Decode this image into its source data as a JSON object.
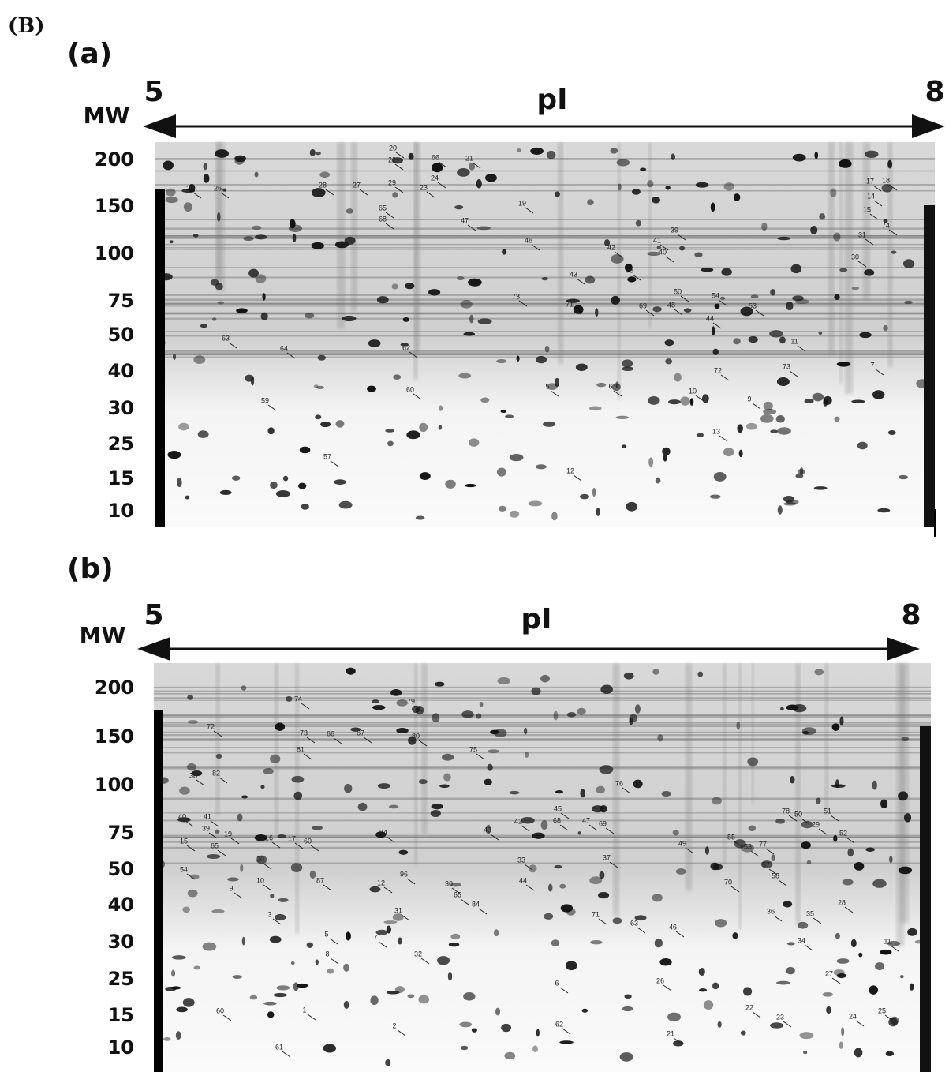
{
  "figure_label": "(B)",
  "panels": [
    {
      "label": "(a)",
      "mw_label": "MW",
      "pi_label": "pI",
      "pi_start": "5",
      "pi_end": "8",
      "mw_ticks": [
        "200",
        "150",
        "100",
        "75",
        "50",
        "40",
        "30",
        "25",
        "15",
        "10"
      ],
      "spots": [
        "20",
        "22",
        "66",
        "21",
        "24",
        "25",
        "26",
        "28",
        "27",
        "29",
        "23",
        "19",
        "65",
        "68",
        "47",
        "17",
        "18",
        "14",
        "15",
        "74",
        "46",
        "39",
        "41",
        "40",
        "42",
        "31",
        "30",
        "73",
        "71",
        "43",
        "75",
        "69",
        "48",
        "50",
        "54",
        "53",
        "44",
        "63",
        "64",
        "62",
        "11",
        "73",
        "7",
        "72",
        "10",
        "5",
        "6",
        "9",
        "59",
        "60",
        "13",
        "57",
        "12"
      ]
    },
    {
      "label": "(b)",
      "mw_label": "MW",
      "pi_label": "pI",
      "pi_start": "5",
      "pi_end": "8",
      "mw_ticks": [
        "200",
        "150",
        "100",
        "75",
        "50",
        "40",
        "30",
        "25",
        "15",
        "10"
      ],
      "spots": [
        "74",
        "79",
        "72",
        "80",
        "73",
        "66",
        "67",
        "81",
        "75",
        "76",
        "38",
        "82",
        "40",
        "41",
        "39",
        "19",
        "42",
        "45",
        "68",
        "47",
        "69",
        "43",
        "15",
        "65",
        "16",
        "17",
        "20",
        "54",
        "60",
        "24",
        "33",
        "37",
        "49",
        "55",
        "53",
        "77",
        "78",
        "50",
        "51",
        "29",
        "52",
        "44",
        "10",
        "87",
        "12",
        "96",
        "30",
        "9",
        "65",
        "84",
        "57",
        "58",
        "70",
        "28",
        "36",
        "35",
        "3",
        "5",
        "7",
        "31",
        "71",
        "63",
        "46",
        "8",
        "32",
        "34",
        "11",
        "6",
        "26",
        "27",
        "60",
        "1",
        "2",
        "62",
        "21",
        "22",
        "23",
        "24",
        "25",
        "61"
      ]
    }
  ]
}
